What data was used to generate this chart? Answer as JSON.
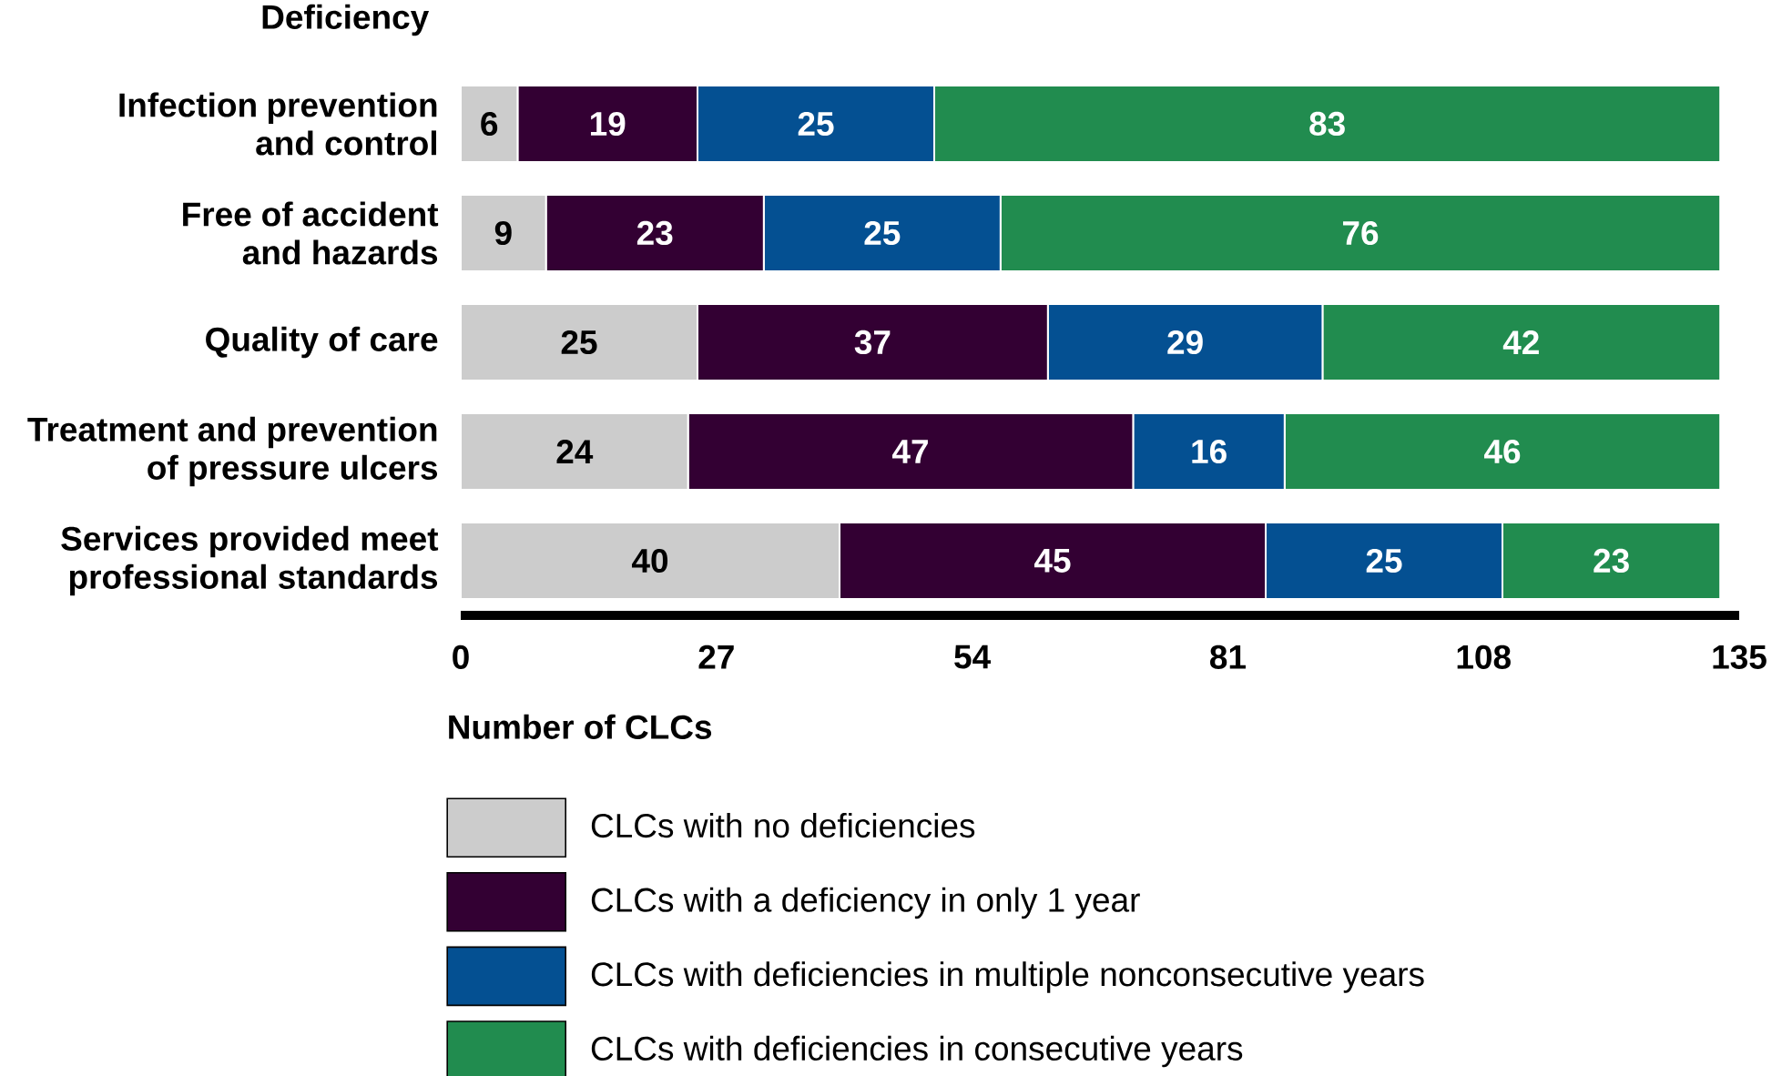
{
  "chart_data": {
    "type": "bar",
    "orientation": "horizontal",
    "stacked": true,
    "ylabel": "Deficiency",
    "xlabel": "Number of CLCs",
    "categories": [
      "Infection prevention and control",
      "Free of accident and hazards",
      "Quality of care",
      "Treatment and prevention of pressure ulcers",
      "Services provided meet professional standards"
    ],
    "series": [
      {
        "name": "CLCs with no deficiencies",
        "color": "#cccccc",
        "values": [
          6,
          9,
          25,
          24,
          40
        ]
      },
      {
        "name": "CLCs with a deficiency in only 1 year",
        "color": "#330033",
        "values": [
          19,
          23,
          37,
          47,
          45
        ]
      },
      {
        "name": "CLCs with deficiencies in multiple nonconsecutive years",
        "color": "#045092",
        "values": [
          25,
          25,
          29,
          16,
          25
        ]
      },
      {
        "name": "CLCs with deficiencies in consecutive years",
        "color": "#218c4f",
        "values": [
          83,
          76,
          42,
          46,
          23
        ]
      }
    ],
    "xlim": [
      0,
      135
    ],
    "xticks": [
      0,
      27,
      54,
      81,
      108,
      135
    ],
    "data_labels": true,
    "legend": "bottom"
  }
}
